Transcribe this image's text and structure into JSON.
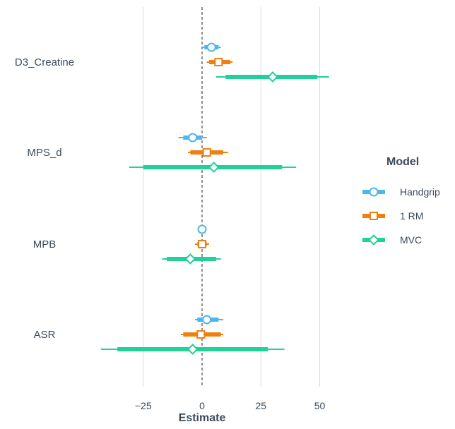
{
  "chart_data": {
    "type": "forest",
    "xlabel": "Estimate",
    "xlim": [
      -45,
      60
    ],
    "x_ticks": [
      -25,
      0,
      25,
      50
    ],
    "x_tick_labels": [
      "−25",
      "0",
      "25",
      "50"
    ],
    "reference_line": 0,
    "grid": "vertical major",
    "categories": [
      "D3_Creatine",
      "MPS_d",
      "MPB",
      "ASR"
    ],
    "legend": {
      "title": "Model",
      "placement": "right"
    },
    "series": [
      {
        "name": "Handgrip",
        "color": "#4db6ee",
        "marker": "circle",
        "points": [
          {
            "category": "D3_Creatine",
            "estimate": 4,
            "inner": [
              1,
              7
            ],
            "outer": [
              0,
              8
            ]
          },
          {
            "category": "MPS_d",
            "estimate": -4,
            "inner": [
              -8,
              0
            ],
            "outer": [
              -10,
              2
            ]
          },
          {
            "category": "MPB",
            "estimate": 0,
            "inner": [
              -0.3,
              0.3
            ],
            "outer": [
              -0.5,
              0.5
            ]
          },
          {
            "category": "ASR",
            "estimate": 2,
            "inner": [
              -2,
              7
            ],
            "outer": [
              -3,
              9
            ]
          }
        ]
      },
      {
        "name": "1 RM",
        "color": "#f07f12",
        "marker": "square",
        "points": [
          {
            "category": "D3_Creatine",
            "estimate": 7,
            "inner": [
              3,
              12
            ],
            "outer": [
              2,
              13
            ]
          },
          {
            "category": "MPS_d",
            "estimate": 2,
            "inner": [
              -5,
              9
            ],
            "outer": [
              -6,
              11
            ]
          },
          {
            "category": "MPB",
            "estimate": 0,
            "inner": [
              -2,
              2
            ],
            "outer": [
              -3,
              3
            ]
          },
          {
            "category": "ASR",
            "estimate": -0.5,
            "inner": [
              -8,
              8
            ],
            "outer": [
              -9,
              9
            ]
          }
        ]
      },
      {
        "name": "MVC",
        "color": "#22d09a",
        "marker": "diamond",
        "points": [
          {
            "category": "D3_Creatine",
            "estimate": 30,
            "inner": [
              10,
              49
            ],
            "outer": [
              6,
              54
            ]
          },
          {
            "category": "MPS_d",
            "estimate": 5,
            "inner": [
              -25,
              34
            ],
            "outer": [
              -31,
              40
            ]
          },
          {
            "category": "MPB",
            "estimate": -5,
            "inner": [
              -15,
              6
            ],
            "outer": [
              -17,
              8
            ]
          },
          {
            "category": "ASR",
            "estimate": -4,
            "inner": [
              -36,
              28
            ],
            "outer": [
              -43,
              35
            ]
          }
        ]
      }
    ]
  }
}
